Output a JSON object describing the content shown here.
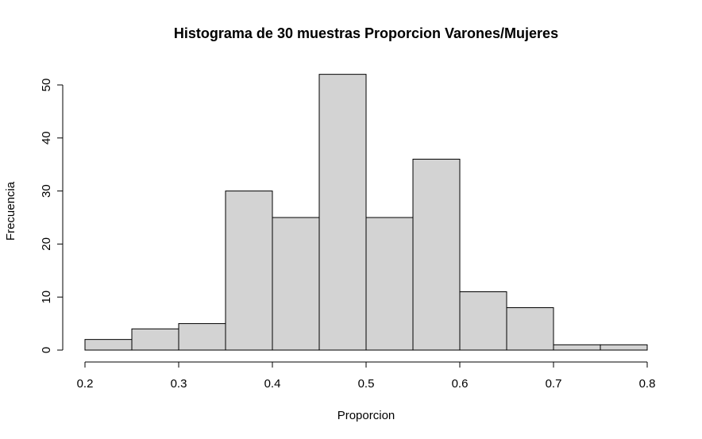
{
  "chart_data": {
    "type": "bar",
    "title": "Histograma de 30 muestras Proporcion Varones/Mujeres",
    "xlabel": "Proporcion",
    "ylabel": "Frecuencia",
    "bins": [
      {
        "x0": 0.2,
        "x1": 0.25,
        "count": 2
      },
      {
        "x0": 0.25,
        "x1": 0.3,
        "count": 4
      },
      {
        "x0": 0.3,
        "x1": 0.35,
        "count": 5
      },
      {
        "x0": 0.35,
        "x1": 0.4,
        "count": 30
      },
      {
        "x0": 0.4,
        "x1": 0.45,
        "count": 25
      },
      {
        "x0": 0.45,
        "x1": 0.5,
        "count": 52
      },
      {
        "x0": 0.5,
        "x1": 0.55,
        "count": 25
      },
      {
        "x0": 0.55,
        "x1": 0.6,
        "count": 36
      },
      {
        "x0": 0.6,
        "x1": 0.65,
        "count": 11
      },
      {
        "x0": 0.65,
        "x1": 0.7,
        "count": 8
      },
      {
        "x0": 0.7,
        "x1": 0.75,
        "count": 1
      },
      {
        "x0": 0.75,
        "x1": 0.8,
        "count": 1
      }
    ],
    "xlim": [
      0.2,
      0.8
    ],
    "ylim": [
      0,
      52
    ],
    "xticks": [
      "0.2",
      "0.3",
      "0.4",
      "0.5",
      "0.6",
      "0.7",
      "0.8"
    ],
    "yticks": [
      "0",
      "10",
      "20",
      "30",
      "40",
      "50"
    ],
    "grid": false,
    "bar_color": "#d3d3d3",
    "edge_color": "#000000"
  }
}
